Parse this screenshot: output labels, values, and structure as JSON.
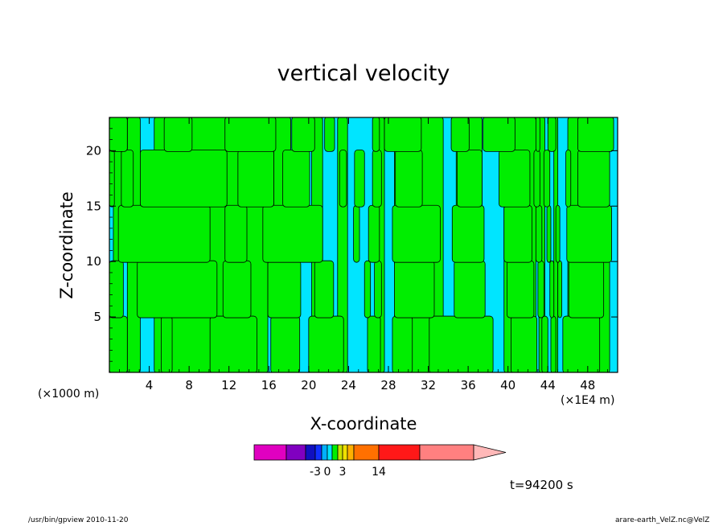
{
  "chart_data": {
    "type": "heatmap",
    "title": "vertical velocity",
    "xlabel": "X-coordinate",
    "ylabel": "Z-coordinate",
    "x_unit_left": "(×1000 m)",
    "x_unit_right": "(×1E4 m)",
    "xlim": [
      0,
      51
    ],
    "ylim": [
      0,
      23
    ],
    "x_ticks": [
      "4",
      "8",
      "12",
      "16",
      "20",
      "24",
      "28",
      "32",
      "36",
      "40",
      "44",
      "48"
    ],
    "x_tick_values": [
      4,
      8,
      12,
      16,
      20,
      24,
      28,
      32,
      36,
      40,
      44,
      48
    ],
    "y_ticks": [
      "5",
      "10",
      "15",
      "20"
    ],
    "y_tick_values": [
      5,
      10,
      15,
      20
    ],
    "colors": {
      "positive": "#00ee00",
      "negative": "#00e5ff",
      "contour": "#000000"
    },
    "green_bands": [
      {
        "z": [
          0,
          23
        ],
        "x": [
          [
            0.4,
            1.2
          ],
          [
            1.8,
            3.1
          ],
          [
            4.5,
            15.9
          ],
          [
            16.5,
            18.2
          ],
          [
            20.3,
            21.4
          ],
          [
            22.9,
            23.9
          ],
          [
            26.8,
            27.6
          ],
          [
            28.6,
            33.5
          ],
          [
            34.8,
            37.4
          ],
          [
            39.6,
            42.8
          ],
          [
            43.1,
            43.7
          ],
          [
            44.6,
            45.0
          ],
          [
            46.0,
            50.2
          ]
        ]
      },
      {
        "z": [
          0,
          5
        ],
        "x": [
          [
            0.0,
            1.8
          ],
          [
            5.2,
            6.3
          ],
          [
            10.1,
            14.8
          ],
          [
            16.2,
            19.1
          ],
          [
            20.0,
            23.5
          ],
          [
            25.9,
            27.2
          ],
          [
            28.4,
            30.4
          ],
          [
            32.1,
            38.5
          ],
          [
            40.3,
            42.9
          ],
          [
            43.4,
            44.0
          ],
          [
            44.3,
            44.8
          ],
          [
            45.5,
            49.2
          ]
        ]
      },
      {
        "z": [
          5,
          10
        ],
        "x": [
          [
            0.0,
            1.4
          ],
          [
            2.8,
            10.8
          ],
          [
            11.4,
            14.2
          ],
          [
            15.9,
            19.2
          ],
          [
            20.6,
            22.5
          ],
          [
            25.6,
            26.2
          ],
          [
            26.6,
            27.3
          ],
          [
            28.6,
            32.6
          ],
          [
            34.6,
            37.7
          ],
          [
            39.9,
            42.6
          ],
          [
            43.0,
            43.6
          ],
          [
            44.2,
            44.6
          ],
          [
            45.0,
            45.4
          ],
          [
            46.1,
            49.6
          ]
        ]
      },
      {
        "z": [
          10,
          15
        ],
        "x": [
          [
            0.9,
            10.1
          ],
          [
            11.6,
            13.8
          ],
          [
            15.4,
            21.4
          ],
          [
            24.5,
            25.1
          ],
          [
            26.0,
            27.1
          ],
          [
            28.4,
            33.2
          ],
          [
            34.4,
            37.6
          ],
          [
            39.6,
            42.4
          ],
          [
            42.8,
            43.4
          ],
          [
            43.9,
            44.3
          ],
          [
            44.8,
            45.2
          ],
          [
            45.9,
            50.4
          ]
        ]
      },
      {
        "z": [
          15,
          20
        ],
        "x": [
          [
            0.0,
            0.5
          ],
          [
            1.2,
            2.4
          ],
          [
            3.1,
            11.8
          ],
          [
            12.9,
            16.5
          ],
          [
            17.4,
            20.1
          ],
          [
            23.1,
            23.8
          ],
          [
            24.6,
            25.6
          ],
          [
            26.4,
            27.3
          ],
          [
            28.7,
            31.4
          ],
          [
            34.9,
            37.4
          ],
          [
            39.1,
            42.2
          ],
          [
            42.6,
            43.2
          ],
          [
            43.6,
            44.2
          ],
          [
            45.8,
            46.3
          ],
          [
            47.0,
            50.2
          ]
        ]
      },
      {
        "z": [
          20,
          23
        ],
        "x": [
          [
            0.0,
            1.8
          ],
          [
            5.5,
            8.3
          ],
          [
            11.6,
            16.7
          ],
          [
            18.3,
            20.6
          ],
          [
            21.6,
            22.6
          ],
          [
            26.4,
            27.1
          ],
          [
            27.6,
            31.3
          ],
          [
            34.3,
            36.1
          ],
          [
            37.5,
            40.7
          ],
          [
            42.8,
            43.2
          ],
          [
            44.0,
            44.8
          ],
          [
            47.0,
            50.6
          ]
        ]
      }
    ]
  },
  "colorbar": {
    "colors": [
      "#e000c0",
      "#8000c0",
      "#1010c0",
      "#1030ff",
      "#00b0ff",
      "#00e5ff",
      "#00ee00",
      "#c8e000",
      "#f0e000",
      "#ffb000",
      "#ff7000",
      "#ff1818",
      "#ff8080",
      "#ffb8b8"
    ],
    "labels": [
      "-3",
      "0",
      "3",
      "14"
    ]
  },
  "time_label": "t=94200 s",
  "footer_left": "/usr/bin/gpview   2010-11-20",
  "footer_right": "arare-earth_VelZ.nc@VelZ"
}
